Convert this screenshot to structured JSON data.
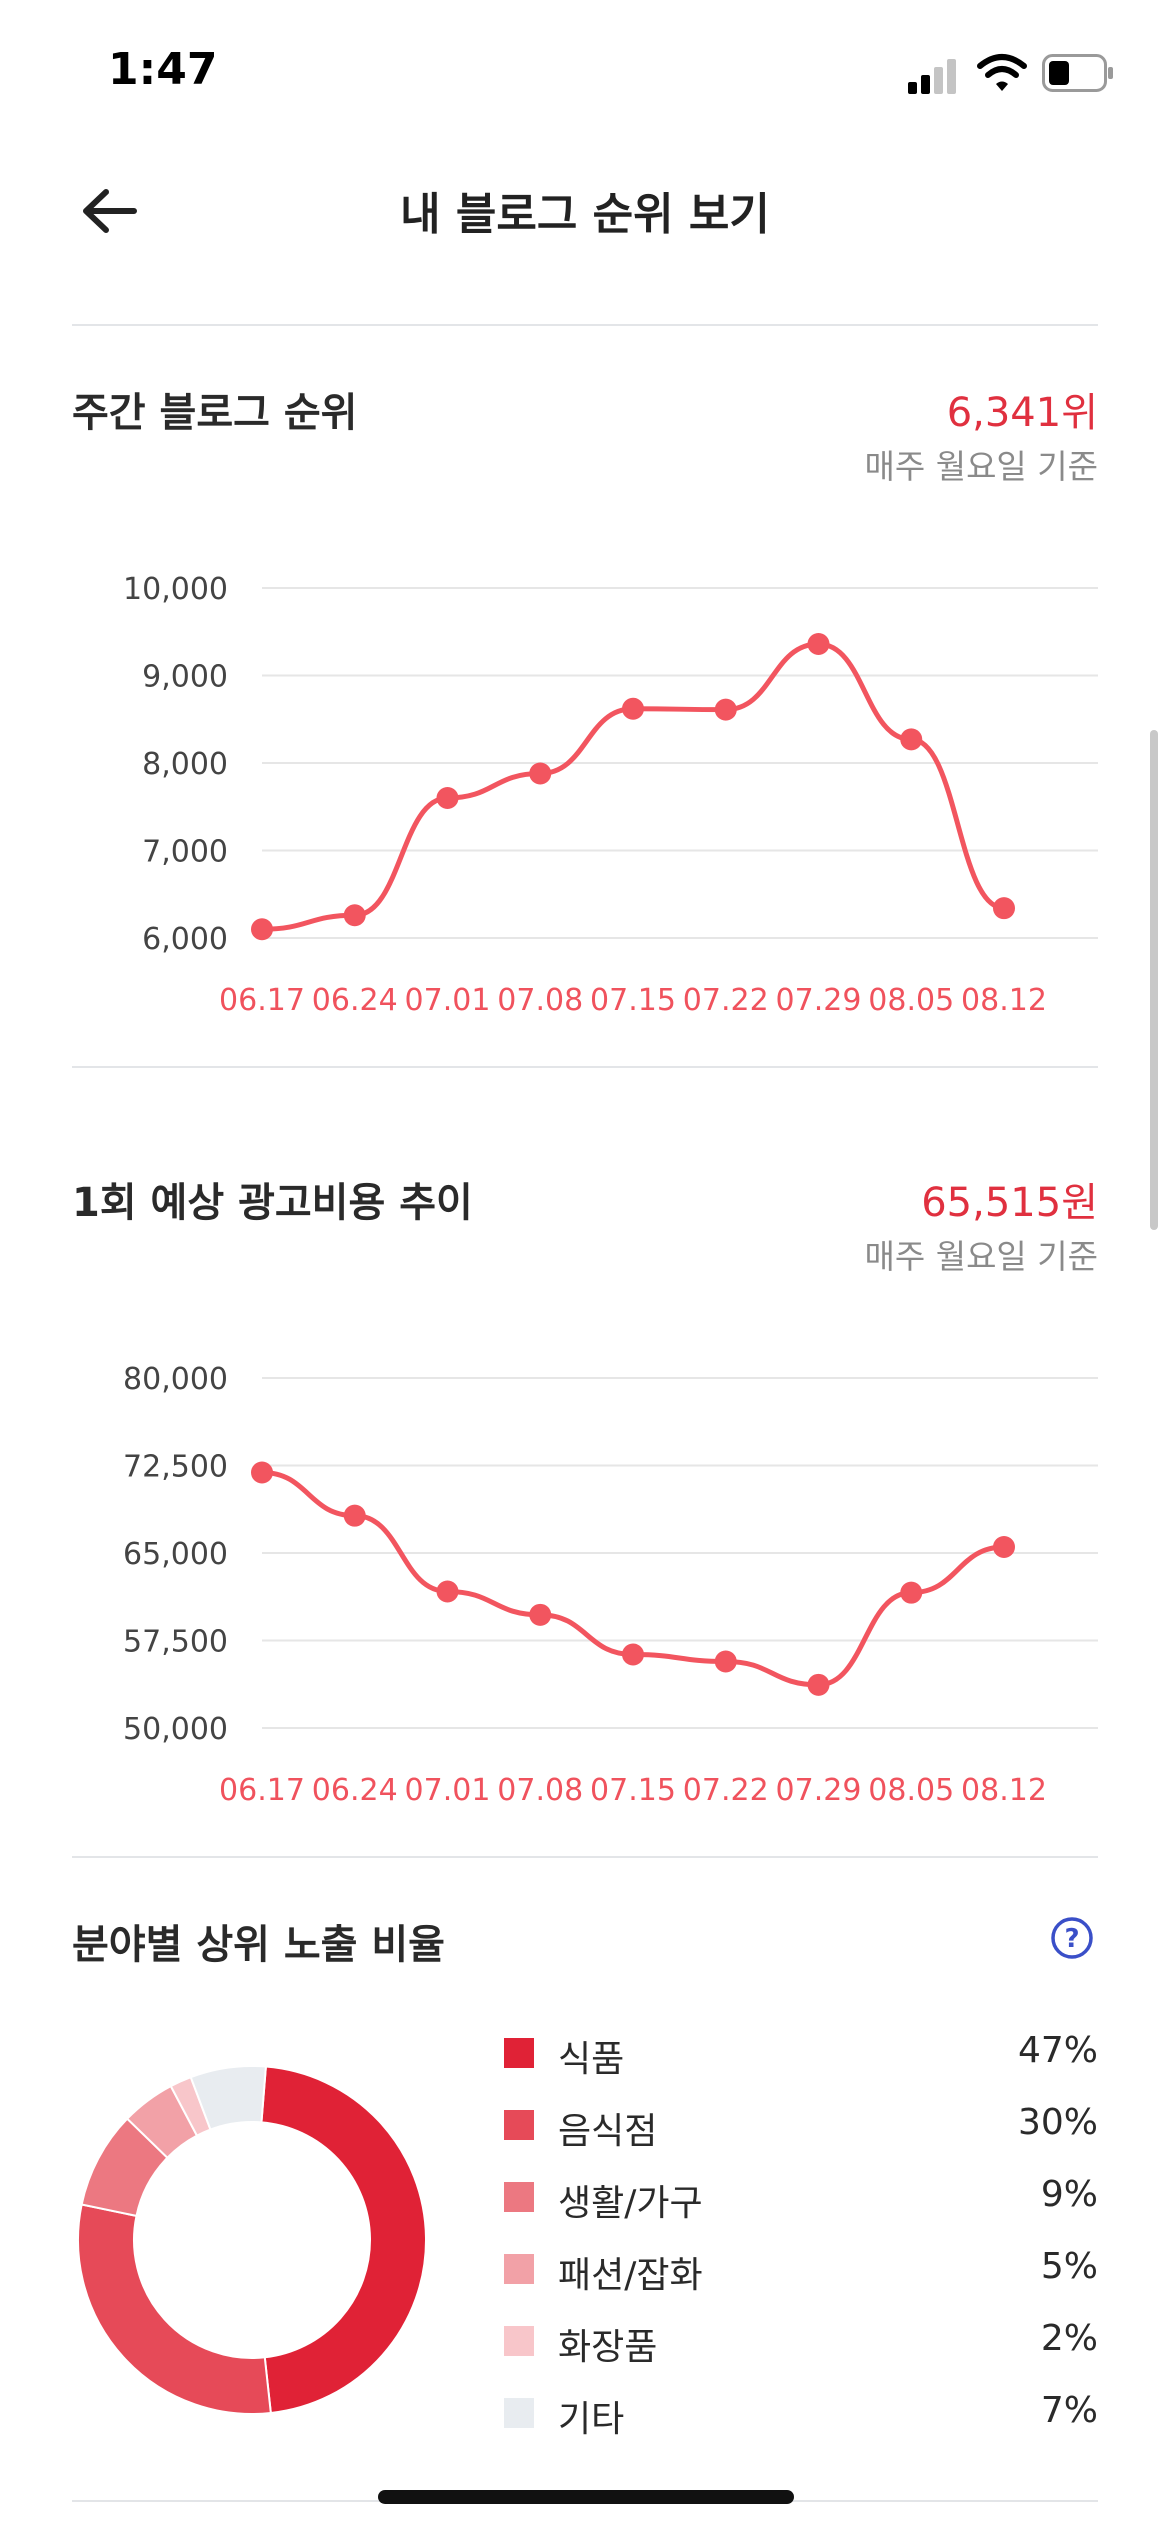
{
  "status_bar": {
    "time": "1:47"
  },
  "header": {
    "title": "내 블로그 순위 보기"
  },
  "rank_section": {
    "title": "주간 블로그 순위",
    "value": "6,341위",
    "subtitle": "매주 월요일 기준"
  },
  "cost_section": {
    "title": "1회 예상 광고비용 추이",
    "value": "65,515원",
    "subtitle": "매주 월요일 기준"
  },
  "category_section": {
    "title": "분야별 상위 노출 비율",
    "legend": [
      {
        "label": "식품",
        "percent": "47%",
        "color": "#e02236"
      },
      {
        "label": "음식점",
        "percent": "30%",
        "color": "#e64a58"
      },
      {
        "label": "생활/가구",
        "percent": "9%",
        "color": "#ec7881"
      },
      {
        "label": "패션/잡화",
        "percent": "5%",
        "color": "#f2a1a7"
      },
      {
        "label": "화장품",
        "percent": "2%",
        "color": "#f8c6ca"
      },
      {
        "label": "기타",
        "percent": "7%",
        "color": "#e8ecf0"
      }
    ]
  },
  "colors": {
    "accent": "#e0303f",
    "line": "#f2555f",
    "axis_label": "#444444",
    "tick_date": "#f0525d",
    "grid": "#e6e6e6"
  },
  "chart_data": [
    {
      "type": "line",
      "title": "주간 블로그 순위",
      "categories": [
        "06.17",
        "06.24",
        "07.01",
        "07.08",
        "07.15",
        "07.22",
        "07.29",
        "08.05",
        "08.12"
      ],
      "values": [
        6100,
        6260,
        7600,
        7880,
        8620,
        8610,
        9360,
        8270,
        6341
      ],
      "yticks": [
        "10,000",
        "9,000",
        "8,000",
        "7,000",
        "6,000"
      ],
      "ylim": [
        6000,
        10000
      ],
      "grid": true
    },
    {
      "type": "line",
      "title": "1회 예상 광고비용 추이",
      "categories": [
        "06.17",
        "06.24",
        "07.01",
        "07.08",
        "07.15",
        "07.22",
        "07.29",
        "08.05",
        "08.12"
      ],
      "values": [
        71900,
        68200,
        61700,
        59700,
        56300,
        55700,
        53700,
        61600,
        65515
      ],
      "yticks": [
        "80,000",
        "72,500",
        "65,000",
        "57,500",
        "50,000"
      ],
      "ylim": [
        50000,
        80000
      ],
      "grid": true
    },
    {
      "type": "pie",
      "title": "분야별 상위 노출 비율",
      "categories": [
        "식품",
        "음식점",
        "생활/가구",
        "패션/잡화",
        "화장품",
        "기타"
      ],
      "values": [
        47,
        30,
        9,
        5,
        2,
        7
      ]
    }
  ]
}
